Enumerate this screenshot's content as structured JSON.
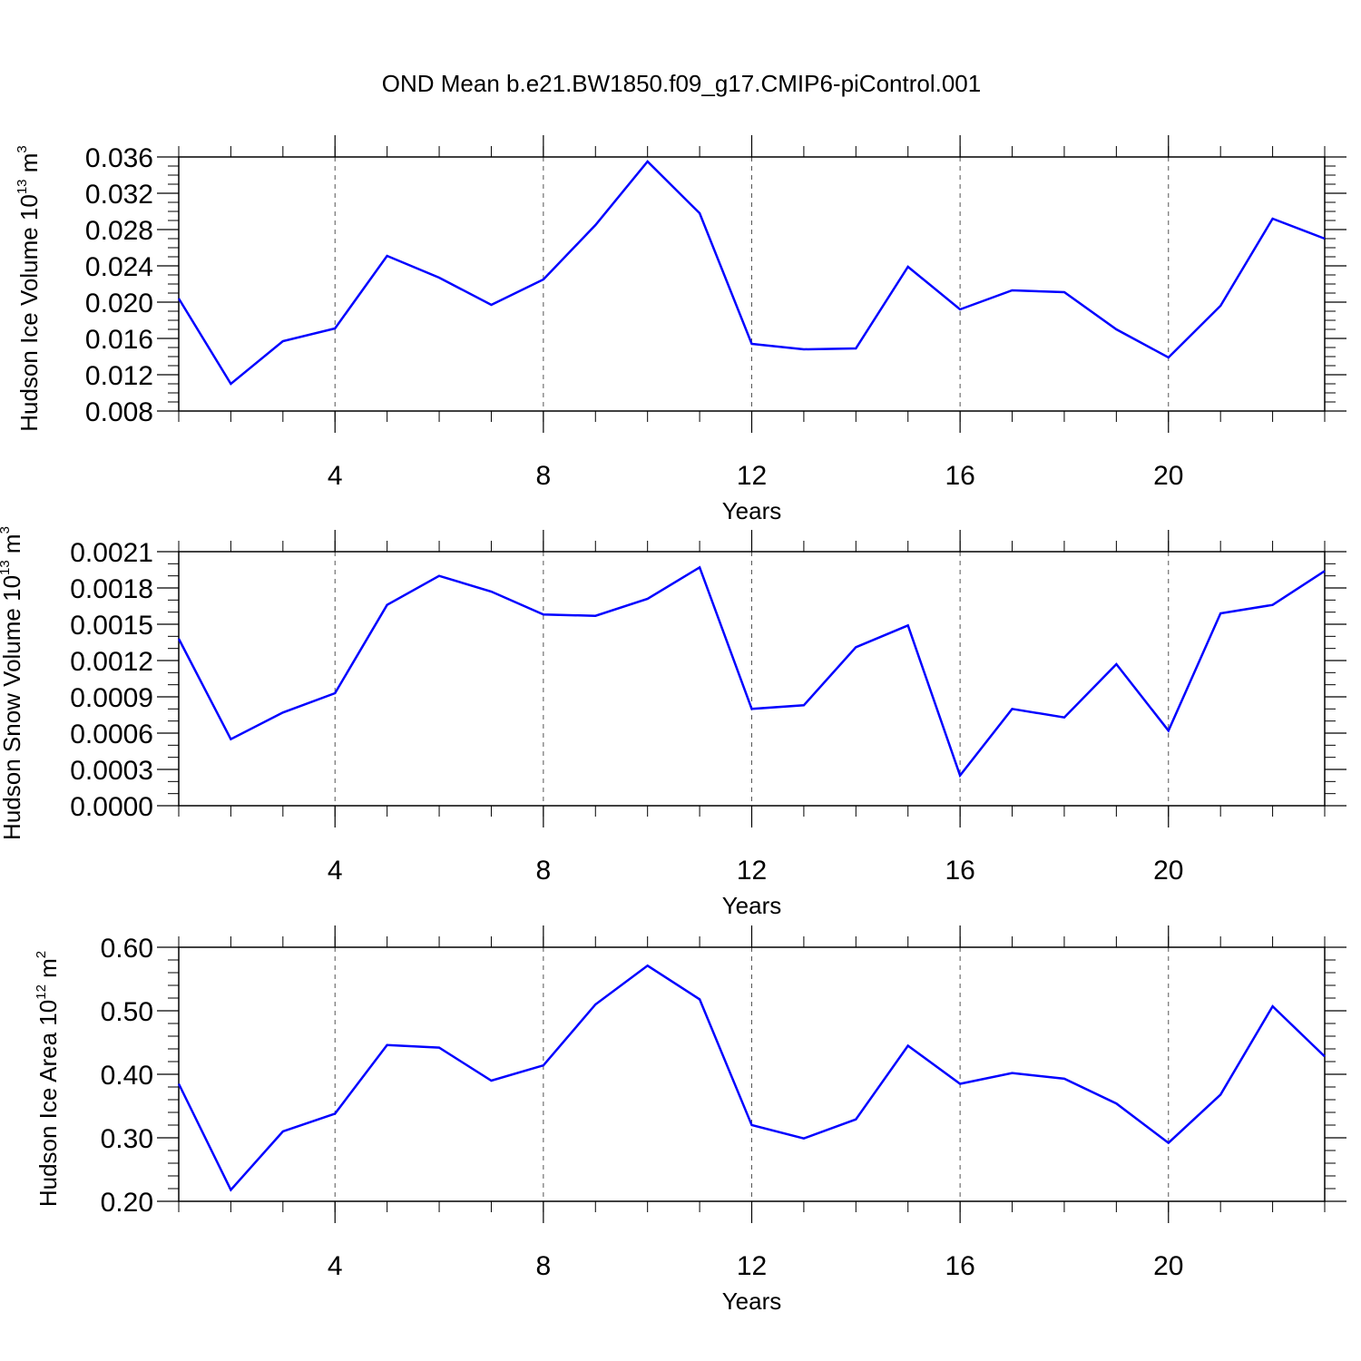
{
  "figure": {
    "title": "OND Mean b.e21.BW1850.f09_g17.CMIP6-piControl.001"
  },
  "chart_data": [
    {
      "type": "line",
      "xlabel": "Years",
      "ylabel": {
        "name": "Hudson Ice Volume",
        "base": "10",
        "exp": "13",
        "unit": "m",
        "unit_exp": "3"
      },
      "xlim": [
        1,
        23
      ],
      "ylim": [
        0.008,
        0.036
      ],
      "x_ticks": [
        4,
        8,
        12,
        16,
        20
      ],
      "x_tick_labels": [
        "4",
        "8",
        "12",
        "16",
        "20"
      ],
      "y_ticks": [
        0.008,
        0.012,
        0.016,
        0.02,
        0.024,
        0.028,
        0.032,
        0.036
      ],
      "y_tick_labels": [
        "0.008",
        "0.012",
        "0.016",
        "0.020",
        "0.024",
        "0.028",
        "0.032",
        "0.036"
      ],
      "y_minor_step": 0.001,
      "line_color": "#0000ff",
      "vertical_grid": true,
      "series": [
        {
          "x": [
            1,
            2,
            3,
            4,
            5,
            6,
            7,
            8,
            9,
            10,
            11,
            12,
            13,
            14,
            15,
            16,
            17,
            18,
            19,
            20,
            21,
            22,
            23
          ],
          "values": [
            0.0204,
            0.011,
            0.0157,
            0.0171,
            0.0251,
            0.0227,
            0.0197,
            0.0225,
            0.0285,
            0.0355,
            0.0298,
            0.0154,
            0.0148,
            0.0149,
            0.0239,
            0.0192,
            0.0213,
            0.0211,
            0.017,
            0.0139,
            0.0196,
            0.0292,
            0.027
          ]
        }
      ]
    },
    {
      "type": "line",
      "xlabel": "Years",
      "ylabel": {
        "name": "Hudson Snow Volume",
        "base": "10",
        "exp": "13",
        "unit": "m",
        "unit_exp": "3"
      },
      "xlim": [
        1,
        23
      ],
      "ylim": [
        0.0,
        0.0021
      ],
      "x_ticks": [
        4,
        8,
        12,
        16,
        20
      ],
      "x_tick_labels": [
        "4",
        "8",
        "12",
        "16",
        "20"
      ],
      "y_ticks": [
        0.0,
        0.0003,
        0.0006,
        0.0009,
        0.0012,
        0.0015,
        0.0018,
        0.0021
      ],
      "y_tick_labels": [
        "0.0000",
        "0.0003",
        "0.0006",
        "0.0009",
        "0.0012",
        "0.0015",
        "0.0018",
        "0.0021"
      ],
      "y_minor_step": 0.0001,
      "line_color": "#0000ff",
      "vertical_grid": true,
      "series": [
        {
          "x": [
            1,
            2,
            3,
            4,
            5,
            6,
            7,
            8,
            9,
            10,
            11,
            12,
            13,
            14,
            15,
            16,
            17,
            18,
            19,
            20,
            21,
            22,
            23
          ],
          "values": [
            0.00138,
            0.00055,
            0.00077,
            0.00093,
            0.00166,
            0.0019,
            0.00177,
            0.00158,
            0.00157,
            0.00171,
            0.00197,
            0.0008,
            0.00083,
            0.00131,
            0.00149,
            0.00025,
            0.0008,
            0.00073,
            0.00117,
            0.00062,
            0.00159,
            0.00166,
            0.00194
          ]
        }
      ]
    },
    {
      "type": "line",
      "xlabel": "Years",
      "ylabel": {
        "name": "Hudson Ice Area",
        "base": "10",
        "exp": "12",
        "unit": "m",
        "unit_exp": "2"
      },
      "xlim": [
        1,
        23
      ],
      "ylim": [
        0.2,
        0.6
      ],
      "x_ticks": [
        4,
        8,
        12,
        16,
        20
      ],
      "x_tick_labels": [
        "4",
        "8",
        "12",
        "16",
        "20"
      ],
      "y_ticks": [
        0.2,
        0.3,
        0.4,
        0.5,
        0.6
      ],
      "y_tick_labels": [
        "0.20",
        "0.30",
        "0.40",
        "0.50",
        "0.60"
      ],
      "y_minor_step": 0.02,
      "line_color": "#0000ff",
      "vertical_grid": true,
      "series": [
        {
          "x": [
            1,
            2,
            3,
            4,
            5,
            6,
            7,
            8,
            9,
            10,
            11,
            12,
            13,
            14,
            15,
            16,
            17,
            18,
            19,
            20,
            21,
            22,
            23
          ],
          "values": [
            0.385,
            0.218,
            0.31,
            0.338,
            0.446,
            0.442,
            0.39,
            0.414,
            0.51,
            0.571,
            0.518,
            0.32,
            0.299,
            0.329,
            0.445,
            0.385,
            0.402,
            0.393,
            0.354,
            0.292,
            0.368,
            0.507,
            0.428
          ]
        }
      ]
    }
  ]
}
